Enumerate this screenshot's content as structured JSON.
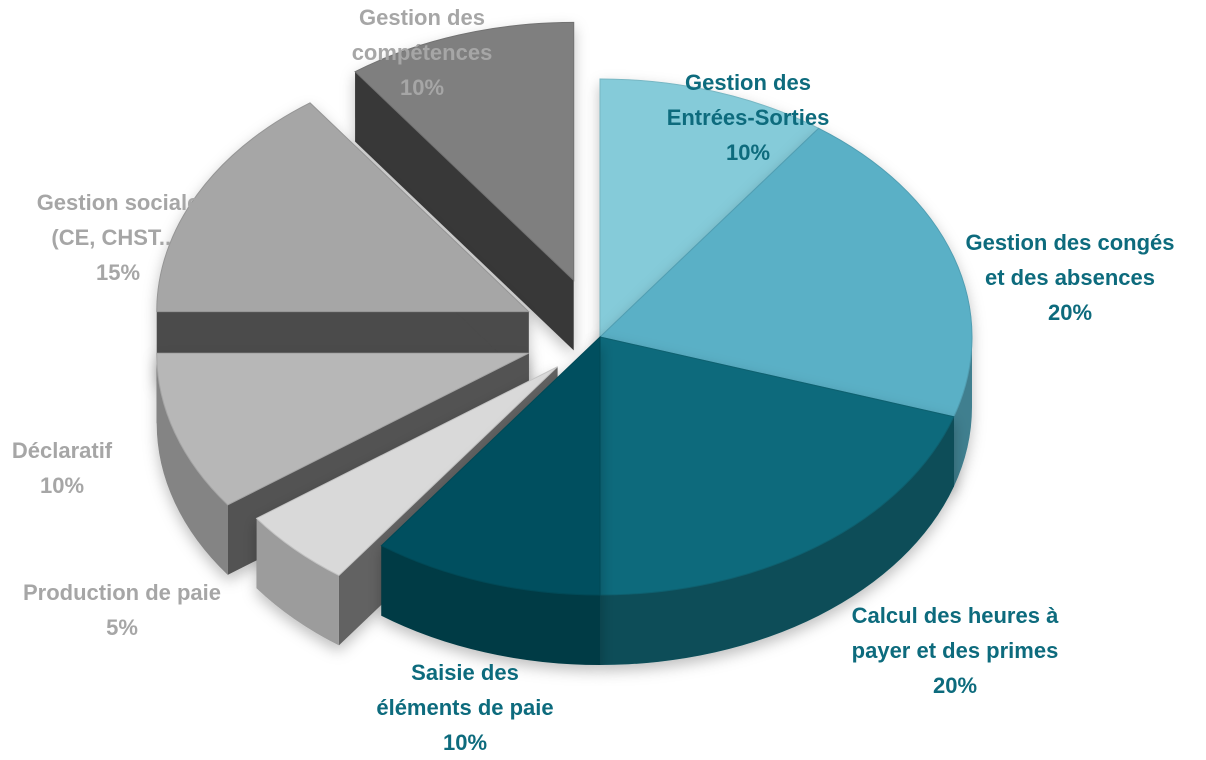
{
  "chart_data": {
    "type": "pie",
    "style": "3d-exploded",
    "slices": [
      {
        "label": [
          "Gestion des",
          "Entrées-Sorties"
        ],
        "percent_text": "10%",
        "value": 10,
        "color": "#85cbd9",
        "label_color": "#0d6b7d"
      },
      {
        "label": [
          "Gestion des congés",
          "et des absences"
        ],
        "percent_text": "20%",
        "value": 20,
        "color": "#5ab0c6",
        "label_color": "#0d6b7d"
      },
      {
        "label": [
          "Calcul des heures à",
          "payer et des primes"
        ],
        "percent_text": "20%",
        "value": 20,
        "color": "#0c6b7b",
        "label_color": "#0d6b7d"
      },
      {
        "label": [
          "Saisie des",
          "éléments de paie"
        ],
        "percent_text": "10%",
        "value": 10,
        "color": "#06505f",
        "label_color": "#0d6b7d"
      },
      {
        "label": [
          "Production de paie"
        ],
        "percent_text": "5%",
        "value": 5,
        "color": "#d9d9d9",
        "label_color": "#a6a6a6"
      },
      {
        "label": [
          "Déclaratif"
        ],
        "percent_text": "10%",
        "value": 10,
        "color": "#b7b7b7",
        "label_color": "#a6a6a6"
      },
      {
        "label": [
          "Gestion sociale",
          "(CE, CHST...)"
        ],
        "percent_text": "15%",
        "value": 15,
        "color": "#a6a6a6",
        "label_color": "#a6a6a6"
      },
      {
        "label": [
          "Gestion des",
          "compétences"
        ],
        "percent_text": "10%",
        "value": 10,
        "color": "#7f7f7f",
        "label_color": "#a6a6a6"
      }
    ]
  }
}
